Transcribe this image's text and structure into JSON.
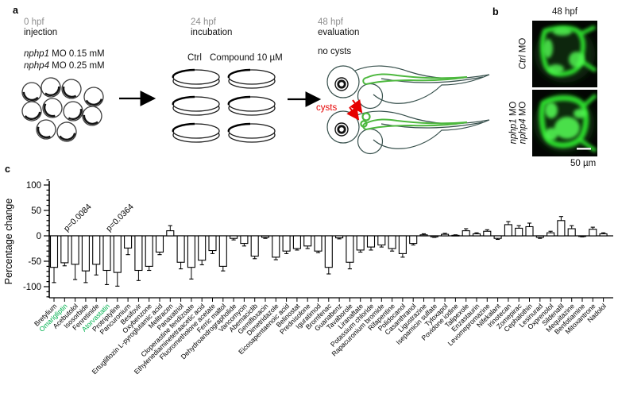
{
  "panel_a": {
    "label": "a",
    "stage1": {
      "time": "0 hpf",
      "action": "injection",
      "mo_line1": {
        "italic": "nphp1",
        "rest": " MO 0.15 mM"
      },
      "mo_line2": {
        "italic": "nphp4",
        "rest": " MO 0.25 mM"
      }
    },
    "stage2": {
      "time": "24 hpf",
      "action": "incubation",
      "ctrl_label": "Ctrl",
      "compound_label": "Compound 10 µM"
    },
    "stage3": {
      "time": "48 hpf",
      "action": "evaluation",
      "no_cysts_label": "no cysts",
      "cysts_label": "cysts"
    }
  },
  "panel_b": {
    "label": "b",
    "title": "48 hpf",
    "top_label": {
      "italic": "Ctrl",
      "rest": " MO"
    },
    "bottom_label_line1": {
      "italic": "nphp1",
      "rest": " MO"
    },
    "bottom_label_line2": {
      "italic": "nphp4",
      "rest": " MO"
    },
    "scale_bar_label": "50 µm"
  },
  "panel_c": {
    "label": "c"
  },
  "colors": {
    "highlight_green": "#00b04e",
    "fluorescence_green": "#35e035",
    "fish_green": "#4db83e",
    "cyst_red": "#e60000",
    "stage_time_gray": "#8e8e8e"
  },
  "chart_data": {
    "type": "bar",
    "title": "",
    "xlabel": "",
    "ylabel": "Percentage change",
    "ylim": [
      -130,
      112
    ],
    "yticks": [
      100,
      50,
      0,
      -50,
      -100
    ],
    "grid": false,
    "legend": "none",
    "bar_fill": "#ffffff",
    "bar_stroke": "#000000",
    "categories": [
      "Bretylium",
      "Omarigliptin",
      "Acebutolol",
      "Isosorbide",
      "Fenretinide",
      "Atorvastatin",
      "Protriptyline",
      "Pancuronium",
      "Besifovir",
      "Oxybenzone",
      "Ertugliflozin L-pyroglutamic acid",
      "Melitracen",
      "Panaxatriol",
      "Cloperastine fendizoate",
      "Ethylenediaminetetraacetic acid",
      "Fluorometholone acetate",
      "Ferric maltol",
      "Dehydroandrographolide",
      "Vancomycin",
      "Abemaciclib",
      "Gemifloxacin",
      "Dimetridazole",
      "Eicosapentaenoic acid",
      "Belinostat",
      "Prednisolone",
      "Iguratimod",
      "Bromfenac",
      "Guanabenz",
      "Tavaborole",
      "Liranaftate",
      "Potassium chloride",
      "Rapacuronium bromide",
      "Rifapentine",
      "Polidocanol",
      "Casanthranol",
      "Ligustrazine",
      "Isepamicin sulfate",
      "Tyloxapol",
      "Povidone iodine",
      "Talipexole",
      "Enzastaurin",
      "Levomepromazine",
      "Nifekalant",
      "Irinotecan",
      "Zomepirac",
      "Cephalothin",
      "Lesinurad",
      "Oxprenolol",
      "Sildenafil",
      "Mequitazine",
      "Benfotiamine",
      "Mitoxantrone",
      "Nadolol"
    ],
    "values": [
      -62,
      -53,
      -56,
      -69,
      -56,
      -68,
      -72,
      -24,
      -68,
      -60,
      -32,
      10,
      -52,
      -62,
      -48,
      -29,
      -60,
      -5,
      -15,
      -40,
      -3,
      -42,
      -30,
      -25,
      -20,
      -30,
      -62,
      -4,
      -52,
      -28,
      -22,
      -18,
      -25,
      -35,
      -15,
      2,
      -2,
      3,
      1,
      10,
      4,
      9,
      -5,
      22,
      15,
      18,
      -3,
      6,
      30,
      14,
      -1,
      13,
      4
    ],
    "errors": [
      30,
      6,
      30,
      23,
      21,
      28,
      27,
      13,
      20,
      8,
      5,
      10,
      13,
      23,
      9,
      6,
      9,
      3,
      5,
      5,
      2,
      5,
      5,
      3,
      5,
      3,
      13,
      2,
      13,
      4,
      6,
      4,
      5,
      7,
      3,
      2,
      1,
      2,
      1,
      4,
      2,
      3,
      2,
      6,
      5,
      7,
      2,
      3,
      8,
      6,
      1,
      4,
      2
    ],
    "highlight_indices": [
      1,
      5
    ],
    "highlight_color": "#00b04e",
    "annotations": [
      {
        "text": "p=0.0084",
        "bar_index": 1
      },
      {
        "text": "p=0.0364",
        "bar_index": 5
      }
    ]
  }
}
